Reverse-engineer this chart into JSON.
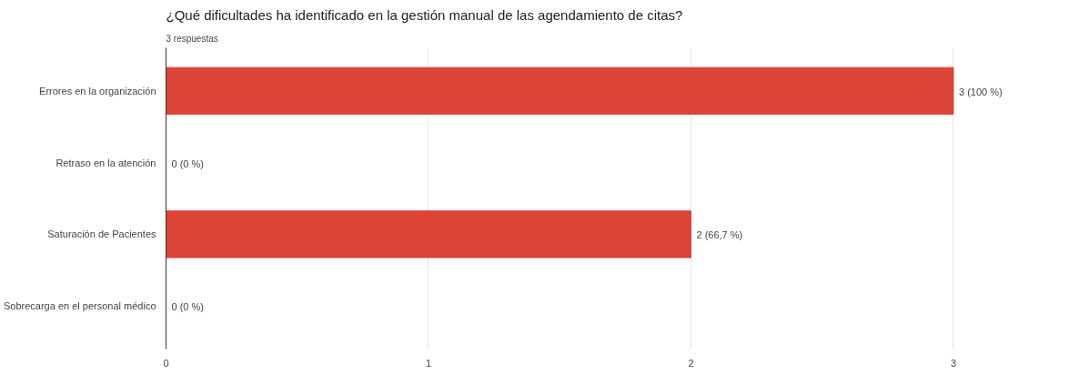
{
  "chart_data": {
    "type": "bar",
    "orientation": "horizontal",
    "title": "¿Qué dificultades ha identificado en la gestión manual de las agendamiento de citas?",
    "subtitle": "3 respuestas",
    "categories": [
      "Errores en la organización",
      "Retraso en la atención",
      "Saturación de Pacientes",
      "Sobrecarga en el personal médico"
    ],
    "values": [
      3,
      0,
      2,
      0
    ],
    "color": "#db4437",
    "value_labels": [
      "3 (100 %)",
      "0 (0 %)",
      "2 (66,7 %)",
      "0 (0 %)"
    ],
    "xlim": [
      0,
      3
    ],
    "xticks": [
      0,
      1,
      2,
      3
    ],
    "grid": "x"
  }
}
